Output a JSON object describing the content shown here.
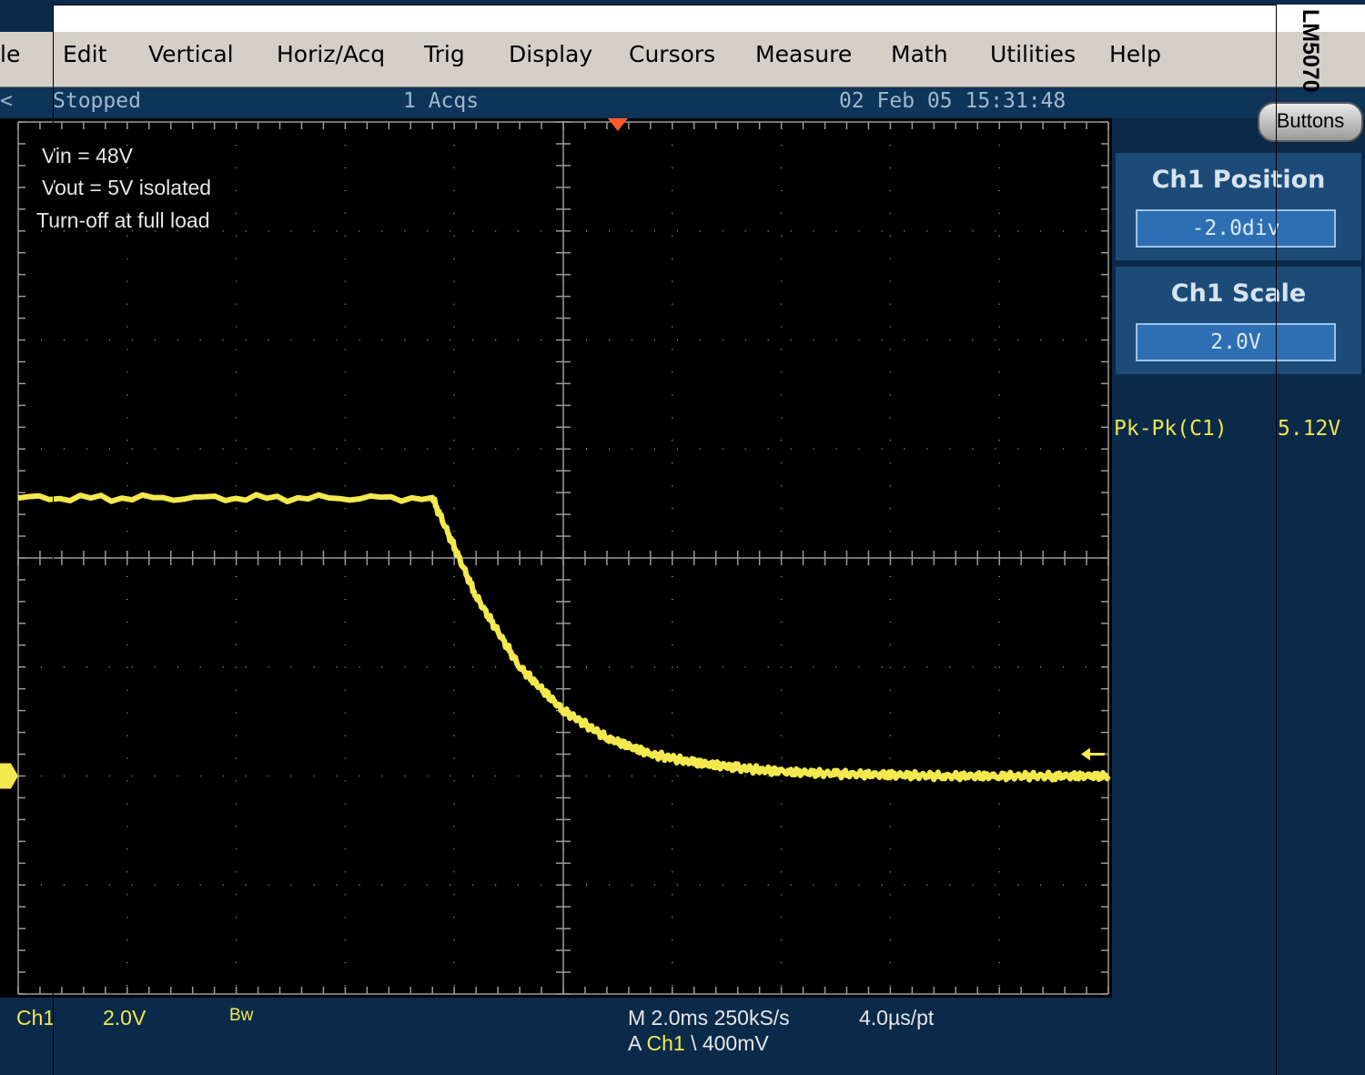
{
  "side_label": "LM5070",
  "menu": [
    "le",
    "Edit",
    "Vertical",
    "Horiz/Acq",
    "Trig",
    "Display",
    "Cursors",
    "Measure",
    "Math",
    "Utilities",
    "Help"
  ],
  "status": {
    "state": "Stopped",
    "acqs": "1 Acqs",
    "timestamp": "02 Feb 05 15:31:48",
    "edge_mark": "<"
  },
  "screen_notes": [
    "Vin = 48V",
    "Vout = 5V isolated",
    "Turn-off at full load"
  ],
  "panel": {
    "buttons_label": "Buttons",
    "position_title": "Ch1 Position",
    "position_value": "-2.0div",
    "scale_title": "Ch1 Scale",
    "scale_value": "2.0V",
    "measurement_label": "Pk-Pk(C1)",
    "measurement_value": "5.12V"
  },
  "bottom": {
    "channel": "Ch1",
    "volts_per_div": "2.0V",
    "bw": "Bw",
    "timebase": "M 2.0ms 250kS/s",
    "resolution": "4.0µs/pt",
    "trigger_prefix": "A",
    "trigger_channel": "Ch1",
    "trigger_slope": "\\",
    "trigger_level": "400mV"
  },
  "colors": {
    "trace": "#f2e94e",
    "grid": "#9a9a9a",
    "trigger_marker": "#ff5a2a",
    "panel_bg": "#0b2a4a"
  },
  "chart_data": {
    "type": "line",
    "title": "",
    "xlabel": "",
    "ylabel": "",
    "x_unit_per_div": "2.0ms",
    "y_unit_per_div": "2.0V",
    "x_divisions": 10,
    "y_divisions": 8,
    "ground_offset_div": -2.0,
    "series": [
      {
        "x_ms": [
          -10.0,
          -2.4,
          -1.6,
          -0.8,
          0.0,
          0.8,
          1.6,
          2.4,
          3.2,
          4.0,
          5.0,
          6.0,
          7.0,
          8.0,
          9.0,
          10.0
        ],
        "y_v": [
          5.1,
          5.1,
          3.3,
          2.0,
          1.2,
          0.7,
          0.4,
          0.25,
          0.15,
          0.08,
          0.04,
          0.02,
          0.0,
          0.0,
          0.0,
          0.0
        ]
      }
    ]
  }
}
